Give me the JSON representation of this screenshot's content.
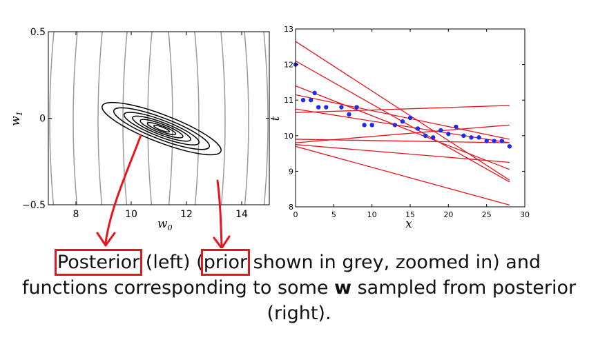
{
  "chart_data": [
    {
      "type": "contour",
      "xlabel": "w",
      "xlabel_sub": "0",
      "ylabel": "w",
      "ylabel_sub": "1",
      "xlim": [
        7,
        15
      ],
      "ylim": [
        -0.5,
        0.5
      ],
      "xticks": [
        8,
        10,
        12,
        14
      ],
      "yticks": [
        -0.5,
        0,
        0.5
      ],
      "xtick_labels": [
        "8",
        "10",
        "12",
        "14"
      ],
      "ytick_labels": [
        "−0.5",
        "0",
        "0.5"
      ],
      "posterior_center": [
        11.1,
        -0.06
      ],
      "posterior_color": "#000000",
      "prior_color": "#9a9a9a"
    },
    {
      "type": "scatter",
      "xlabel": "x",
      "ylabel": "t",
      "xlim": [
        0,
        30
      ],
      "ylim": [
        8,
        13
      ],
      "xticks": [
        0,
        5,
        10,
        15,
        20,
        25,
        30
      ],
      "yticks": [
        8,
        9,
        10,
        11,
        12,
        13
      ],
      "xtick_labels": [
        "0",
        "5",
        "10",
        "15",
        "20",
        "25",
        "30"
      ],
      "ytick_labels": [
        "8",
        "9",
        "10",
        "11",
        "12",
        "13"
      ],
      "points": [
        [
          0,
          12.0
        ],
        [
          1,
          11.0
        ],
        [
          2,
          11.0
        ],
        [
          2.5,
          11.2
        ],
        [
          3,
          10.8
        ],
        [
          4,
          10.8
        ],
        [
          6,
          10.8
        ],
        [
          7,
          10.6
        ],
        [
          8,
          10.8
        ],
        [
          9,
          10.3
        ],
        [
          10,
          10.3
        ],
        [
          13,
          10.3
        ],
        [
          14,
          10.4
        ],
        [
          15,
          10.5
        ],
        [
          16,
          10.2
        ],
        [
          17,
          10.0
        ],
        [
          18,
          9.95
        ],
        [
          19,
          10.15
        ],
        [
          20,
          10.05
        ],
        [
          21,
          10.25
        ],
        [
          22,
          10.0
        ],
        [
          23,
          9.95
        ],
        [
          24,
          9.95
        ],
        [
          25,
          9.85
        ],
        [
          26,
          9.85
        ],
        [
          27,
          9.85
        ],
        [
          28,
          9.7
        ]
      ],
      "lines": [
        [
          12.65,
          8.75
        ],
        [
          12.1,
          8.7
        ],
        [
          11.4,
          9.05
        ],
        [
          11.15,
          9.9
        ],
        [
          10.75,
          9.8
        ],
        [
          10.65,
          10.85
        ],
        [
          9.9,
          9.8
        ],
        [
          9.8,
          10.3
        ],
        [
          9.75,
          9.25
        ],
        [
          9.7,
          8.05
        ]
      ],
      "point_color": "#1a2cf0",
      "line_color": "#e8141b"
    }
  ],
  "caption": {
    "word_posterior": "Posterior",
    "part_a": " (left) (",
    "word_prior": "prior",
    "part_b": " shown in grey, zoomed in) and",
    "line2_a": "functions corresponding to some ",
    "bold_w": "w",
    "line2_b": " sampled from posterior",
    "line3": "(right)."
  },
  "annotation_color": "#e8141b"
}
